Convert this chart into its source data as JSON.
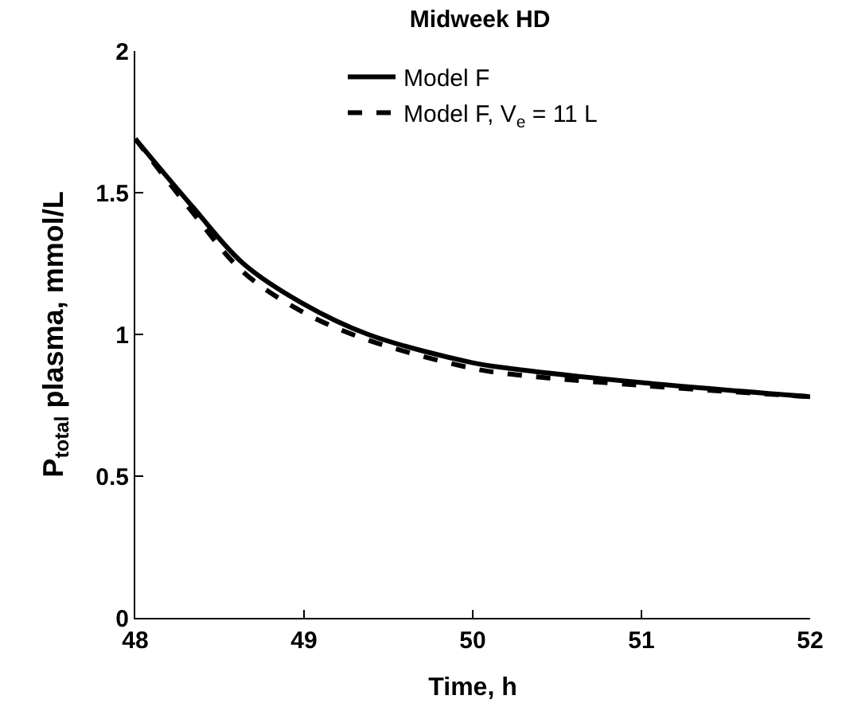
{
  "chart_data": {
    "type": "line",
    "title": "Midweek HD",
    "xlabel": "Time, h",
    "ylabel": "P$_{total}$ plasma, mmol/L",
    "series": [
      {
        "name": "Model F",
        "color": "#000000",
        "line_style": "solid",
        "x": [
          48,
          48.34,
          48.64,
          48.99,
          49.38,
          50,
          50.22,
          51,
          52
        ],
        "values": [
          1.69,
          1.45,
          1.25,
          1.11,
          1.0,
          0.9,
          0.88,
          0.83,
          0.78
        ]
      },
      {
        "name": "Model F, V$_{e}$ = 11 L",
        "color": "#000000",
        "line_style": "dashed",
        "x": [
          48,
          48.34,
          48.64,
          48.99,
          49.38,
          50,
          50.22,
          51,
          52
        ],
        "values": [
          1.69,
          1.43,
          1.22,
          1.08,
          0.98,
          0.88,
          0.86,
          0.82,
          0.78
        ]
      }
    ],
    "xlim": [
      48,
      52
    ],
    "xticks": [
      48,
      49,
      50,
      51,
      52
    ],
    "ylim": [
      0,
      2
    ],
    "yticks": [
      0,
      0.5,
      1,
      1.5,
      2
    ],
    "legend": "top",
    "marker": "none"
  }
}
